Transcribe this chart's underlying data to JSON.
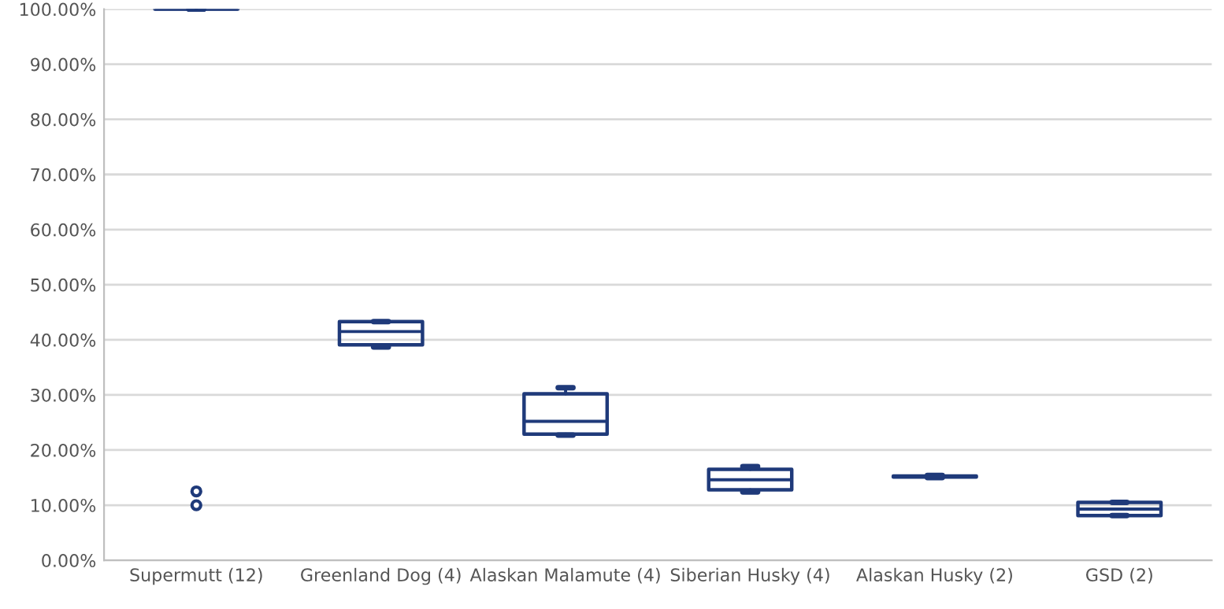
{
  "chart_data": {
    "type": "box",
    "categories": [
      "Supermutt (12)",
      "Greenland Dog (4)",
      "Alaskan Malamute (4)",
      "Siberian Husky (4)",
      "Alaskan Husky (2)",
      "GSD (2)"
    ],
    "boxes": [
      {
        "low": 100,
        "q1": 100,
        "median": 100,
        "q3": 100,
        "high": 100,
        "outliers": [
          12.5,
          10
        ]
      },
      {
        "low": 38.7,
        "q1": 39.1,
        "median": 41.5,
        "q3": 43.3,
        "high": 43.3
      },
      {
        "low": 22.7,
        "q1": 22.9,
        "median": 25.2,
        "q3": 30.2,
        "high": 31.3
      },
      {
        "low": 12.4,
        "q1": 12.8,
        "median": 14.6,
        "q3": 16.5,
        "high": 17.0
      },
      {
        "low": 15.0,
        "q1": 15.1,
        "median": 15.2,
        "q3": 15.3,
        "high": 15.4
      },
      {
        "low": 8.1,
        "q1": 8.1,
        "median": 9.3,
        "q3": 10.5,
        "high": 10.5
      }
    ],
    "color": "#1f3a7a",
    "ylim": [
      0,
      100
    ],
    "yticks": [
      {
        "value": 0,
        "label": "0.00%"
      },
      {
        "value": 10,
        "label": "10.00%"
      },
      {
        "value": 20,
        "label": "20.00%"
      },
      {
        "value": 30,
        "label": "30.00%"
      },
      {
        "value": 40,
        "label": "40.00%"
      },
      {
        "value": 50,
        "label": "50.00%"
      },
      {
        "value": 60,
        "label": "60.00%"
      },
      {
        "value": 70,
        "label": "70.00%"
      },
      {
        "value": 80,
        "label": "80.00%"
      },
      {
        "value": 90,
        "label": "90.00%"
      },
      {
        "value": 100,
        "label": "100.00%"
      }
    ],
    "grid": "y"
  }
}
